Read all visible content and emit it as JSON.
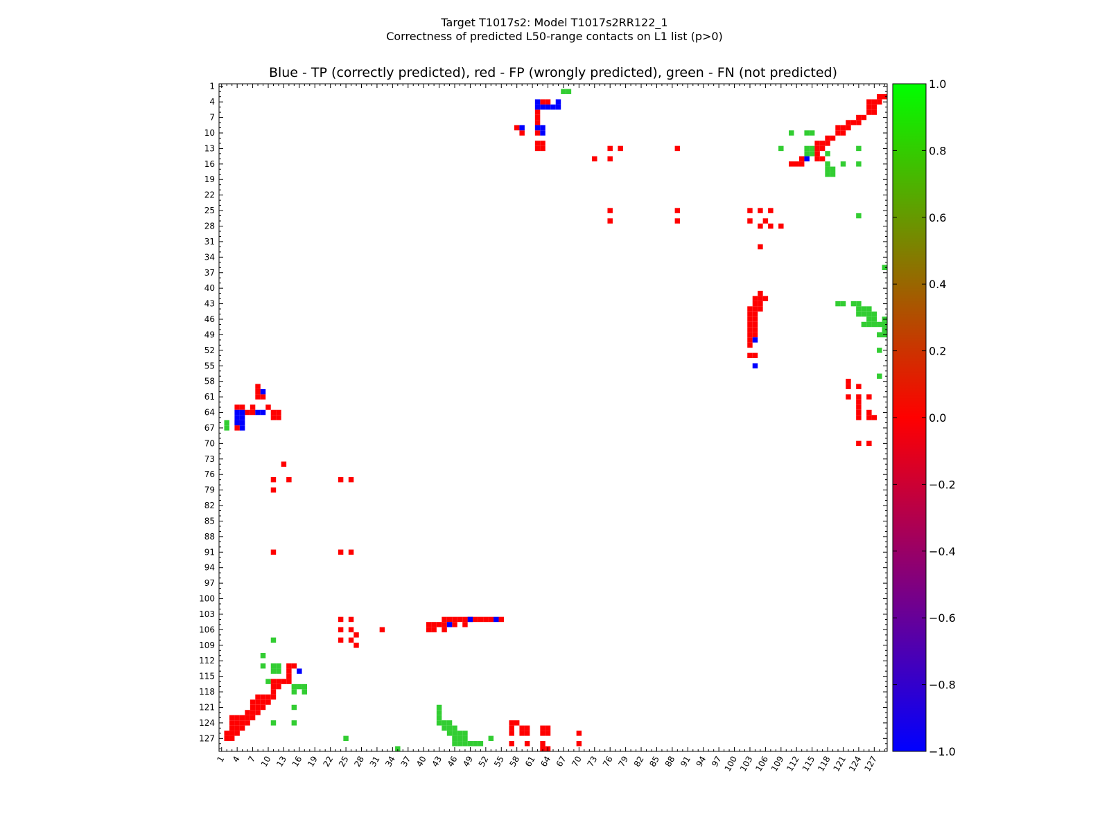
{
  "figure": {
    "title_line1": "Target T1017s2: Model T1017s2RR122_1",
    "title_line2": "Correctness of predicted L50-range contacts on L1 list (p>0)"
  },
  "chart_data": {
    "type": "heatmap",
    "title": "Blue - TP (correctly predicted), red - FP (wrongly predicted), green - FN (not predicted)",
    "xlabel": "",
    "ylabel": "",
    "xlim": [
      1,
      129
    ],
    "ylim": [
      1,
      129
    ],
    "x_ticks": [
      1,
      4,
      7,
      10,
      13,
      16,
      19,
      22,
      25,
      28,
      31,
      34,
      37,
      40,
      43,
      46,
      49,
      52,
      55,
      58,
      61,
      64,
      67,
      70,
      73,
      76,
      79,
      82,
      85,
      88,
      91,
      94,
      97,
      100,
      103,
      106,
      109,
      112,
      115,
      118,
      121,
      124,
      127
    ],
    "y_ticks": [
      1,
      4,
      7,
      10,
      13,
      16,
      19,
      22,
      25,
      28,
      31,
      34,
      37,
      40,
      43,
      46,
      49,
      52,
      55,
      58,
      61,
      64,
      67,
      70,
      73,
      76,
      79,
      82,
      85,
      88,
      91,
      94,
      97,
      100,
      103,
      106,
      109,
      112,
      115,
      118,
      121,
      124,
      127
    ],
    "colorbar": {
      "min": -1.0,
      "max": 1.0,
      "ticks": [
        "1.0",
        "0.8",
        "0.6",
        "0.4",
        "0.2",
        "0.0",
        "−0.2",
        "−0.4",
        "−0.6",
        "−0.8",
        "−1.0"
      ],
      "colormap": [
        "#0000ff",
        "#ff0000",
        "#00ff00"
      ]
    },
    "categories": {
      "TP": {
        "value": -1,
        "color": "#0000ff"
      },
      "FP": {
        "value": 0,
        "color": "#ff0000"
      },
      "FN": {
        "value": 0.8,
        "color": "#32cd32"
      }
    },
    "cells": {
      "TP": [
        [
          4,
          62
        ],
        [
          5,
          62
        ],
        [
          5,
          63
        ],
        [
          5,
          64
        ],
        [
          5,
          65
        ],
        [
          5,
          66
        ],
        [
          9,
          62
        ],
        [
          9,
          63
        ],
        [
          10,
          63
        ],
        [
          4,
          66
        ],
        [
          9,
          59
        ],
        [
          15,
          114
        ],
        [
          50,
          104
        ],
        [
          55,
          104
        ],
        [
          104,
          49
        ],
        [
          104,
          54
        ],
        [
          105,
          45
        ],
        [
          60,
          9
        ],
        [
          64,
          4
        ],
        [
          64,
          5
        ],
        [
          64,
          8
        ],
        [
          64,
          9
        ],
        [
          65,
          4
        ],
        [
          65,
          5
        ],
        [
          66,
          4
        ],
        [
          66,
          5
        ],
        [
          67,
          5
        ],
        [
          114,
          16
        ]
      ],
      "FP": [
        [
          3,
          128
        ],
        [
          3,
          129
        ],
        [
          4,
          126
        ],
        [
          4,
          127
        ],
        [
          4,
          128
        ],
        [
          5,
          126
        ],
        [
          5,
          127
        ],
        [
          6,
          126
        ],
        [
          6,
          127
        ],
        [
          7,
          124
        ],
        [
          7,
          125
        ],
        [
          8,
          122
        ],
        [
          8,
          123
        ],
        [
          8,
          124
        ],
        [
          9,
          120
        ],
        [
          9,
          121
        ],
        [
          9,
          122
        ],
        [
          10,
          120
        ],
        [
          10,
          121
        ],
        [
          11,
          118
        ],
        [
          11,
          119
        ],
        [
          12,
          116
        ],
        [
          12,
          117
        ],
        [
          12,
          118
        ],
        [
          13,
          116
        ],
        [
          13,
          117
        ],
        [
          14,
          116
        ],
        [
          15,
          116
        ],
        [
          15,
          117
        ],
        [
          15,
          113
        ],
        [
          16,
          113
        ],
        [
          16,
          112
        ],
        [
          16,
          111
        ],
        [
          4,
          63
        ],
        [
          4,
          64
        ],
        [
          6,
          62
        ],
        [
          7,
          62
        ],
        [
          8,
          62
        ],
        [
          9,
          58
        ],
        [
          10,
          59
        ],
        [
          10,
          62
        ],
        [
          12,
          62
        ],
        [
          12,
          63
        ],
        [
          13,
          62
        ],
        [
          13,
          63
        ],
        [
          13,
          76
        ],
        [
          13,
          78
        ],
        [
          13,
          89
        ],
        [
          15,
          73
        ],
        [
          15,
          76
        ],
        [
          25,
          76
        ],
        [
          25,
          89
        ],
        [
          27,
          76
        ],
        [
          27,
          89
        ],
        [
          25,
          103
        ],
        [
          25,
          105
        ],
        [
          25,
          107
        ],
        [
          27,
          103
        ],
        [
          27,
          106
        ],
        [
          28,
          105
        ],
        [
          28,
          107
        ],
        [
          28,
          109
        ],
        [
          32,
          105
        ],
        [
          41,
          105
        ],
        [
          42,
          104
        ],
        [
          42,
          105
        ],
        [
          42,
          106
        ],
        [
          43,
          104
        ],
        [
          43,
          105
        ],
        [
          44,
          103
        ],
        [
          44,
          104
        ],
        [
          44,
          105
        ],
        [
          45,
          103
        ],
        [
          45,
          104
        ],
        [
          46,
          103
        ],
        [
          46,
          104
        ],
        [
          47,
          103
        ],
        [
          47,
          104
        ],
        [
          48,
          103
        ],
        [
          48,
          104
        ],
        [
          49,
          103
        ],
        [
          49,
          104
        ],
        [
          50,
          103
        ],
        [
          51,
          103
        ],
        [
          53,
          103
        ],
        [
          53,
          104
        ],
        [
          58,
          122
        ],
        [
          59,
          122
        ],
        [
          59,
          124
        ],
        [
          61,
          122
        ],
        [
          61,
          124
        ],
        [
          61,
          126
        ],
        [
          62,
          124
        ],
        [
          63,
          124
        ],
        [
          64,
          124
        ],
        [
          64,
          126
        ],
        [
          65,
          124
        ],
        [
          65,
          126
        ],
        [
          65,
          127
        ],
        [
          70,
          124
        ],
        [
          70,
          126
        ],
        [
          59,
          8
        ],
        [
          60,
          8
        ],
        [
          61,
          8
        ],
        [
          61,
          9
        ],
        [
          63,
          4
        ],
        [
          63,
          5
        ],
        [
          63,
          7
        ],
        [
          63,
          10
        ],
        [
          64,
          6
        ],
        [
          64,
          7
        ],
        [
          64,
          11
        ],
        [
          64,
          12
        ],
        [
          65,
          11
        ],
        [
          65,
          12
        ],
        [
          66,
          4
        ],
        [
          67,
          4
        ],
        [
          74,
          13
        ],
        [
          77,
          11
        ],
        [
          77,
          14
        ],
        [
          79,
          11
        ],
        [
          91,
          11
        ],
        [
          77,
          24
        ],
        [
          77,
          26
        ],
        [
          91,
          24
        ],
        [
          91,
          26
        ],
        [
          104,
          24
        ],
        [
          104,
          26
        ],
        [
          106,
          24
        ],
        [
          106,
          26
        ],
        [
          106,
          32
        ],
        [
          107,
          27
        ],
        [
          108,
          24
        ],
        [
          108,
          26
        ],
        [
          109,
          27
        ],
        [
          104,
          44
        ],
        [
          104,
          45
        ],
        [
          104,
          46
        ],
        [
          104,
          47
        ],
        [
          104,
          48
        ],
        [
          104,
          49
        ],
        [
          104,
          50
        ],
        [
          104,
          51
        ],
        [
          104,
          52
        ],
        [
          104,
          53
        ],
        [
          104,
          55
        ],
        [
          105,
          41
        ],
        [
          105,
          42
        ],
        [
          105,
          43
        ],
        [
          105,
          44
        ],
        [
          105,
          46
        ],
        [
          105,
          48
        ],
        [
          106,
          41
        ],
        [
          106,
          42
        ],
        [
          106,
          44
        ],
        [
          113,
          14
        ],
        [
          113,
          15
        ],
        [
          114,
          14
        ],
        [
          115,
          14
        ],
        [
          116,
          11
        ],
        [
          116,
          12
        ],
        [
          116,
          13
        ],
        [
          116,
          14
        ],
        [
          117,
          11
        ],
        [
          117,
          12
        ],
        [
          118,
          11
        ],
        [
          119,
          8
        ],
        [
          119,
          9
        ],
        [
          119,
          10
        ],
        [
          119,
          11
        ],
        [
          120,
          7
        ],
        [
          120,
          8
        ],
        [
          120,
          9
        ],
        [
          120,
          10
        ],
        [
          121,
          7
        ],
        [
          121,
          8
        ],
        [
          121,
          9
        ],
        [
          122,
          6
        ],
        [
          122,
          7
        ],
        [
          122,
          8
        ],
        [
          123,
          3
        ],
        [
          123,
          4
        ],
        [
          123,
          5
        ],
        [
          123,
          6
        ],
        [
          123,
          7
        ],
        [
          124,
          3
        ],
        [
          124,
          4
        ],
        [
          124,
          5
        ],
        [
          124,
          6
        ],
        [
          125,
          3
        ],
        [
          125,
          4
        ],
        [
          125,
          5
        ],
        [
          126,
          2
        ],
        [
          126,
          3
        ],
        [
          126,
          4
        ],
        [
          127,
          2
        ],
        [
          127,
          3
        ],
        [
          124,
          57
        ],
        [
          124,
          58
        ],
        [
          125,
          57
        ],
        [
          125,
          59
        ],
        [
          125,
          60
        ],
        [
          125,
          63
        ],
        [
          125,
          64
        ],
        [
          126,
          57
        ],
        [
          126,
          59
        ],
        [
          126,
          60
        ],
        [
          126,
          63
        ],
        [
          126,
          64
        ],
        [
          126,
          70
        ],
        [
          128,
          57
        ],
        [
          128,
          60
        ],
        [
          128,
          63
        ],
        [
          128,
          70
        ],
        [
          129,
          63
        ],
        [
          129,
          64
        ]
      ],
      "FN": [
        [
          2,
          67
        ],
        [
          2,
          68
        ],
        [
          10,
          111
        ],
        [
          10,
          114
        ],
        [
          10,
          115
        ],
        [
          13,
          109
        ],
        [
          13,
          114
        ],
        [
          13,
          115
        ],
        [
          13,
          124
        ],
        [
          14,
          114
        ],
        [
          14,
          115
        ],
        [
          14,
          118
        ],
        [
          16,
          118
        ],
        [
          16,
          121
        ],
        [
          16,
          124
        ],
        [
          17,
          118
        ],
        [
          17,
          119
        ],
        [
          18,
          118
        ],
        [
          18,
          119
        ],
        [
          26,
          124
        ],
        [
          36,
          129
        ],
        [
          43,
          120
        ],
        [
          43,
          121
        ],
        [
          43,
          123
        ],
        [
          43,
          124
        ],
        [
          44,
          124
        ],
        [
          44,
          125
        ],
        [
          44,
          126
        ],
        [
          45,
          124
        ],
        [
          45,
          125
        ],
        [
          45,
          126
        ],
        [
          45,
          127
        ],
        [
          46,
          126
        ],
        [
          46,
          127
        ],
        [
          46,
          129
        ],
        [
          47,
          125
        ],
        [
          47,
          126
        ],
        [
          47,
          127
        ],
        [
          47,
          128
        ],
        [
          47,
          129
        ],
        [
          48,
          129
        ],
        [
          49,
          128
        ],
        [
          49,
          129
        ],
        [
          52,
          128
        ],
        [
          57,
          128
        ],
        [
          66,
          2
        ],
        [
          67,
          2
        ],
        [
          108,
          11
        ],
        [
          111,
          9
        ],
        [
          113,
          9
        ],
        [
          113,
          11
        ],
        [
          113,
          12
        ],
        [
          114,
          11
        ],
        [
          114,
          12
        ],
        [
          116,
          10
        ],
        [
          117,
          15
        ],
        [
          117,
          16
        ],
        [
          117,
          17
        ],
        [
          118,
          15
        ],
        [
          118,
          17
        ],
        [
          121,
          15
        ],
        [
          124,
          11
        ],
        [
          124,
          15
        ],
        [
          127,
          25
        ],
        [
          121,
          43
        ],
        [
          122,
          43
        ],
        [
          123,
          43
        ],
        [
          124,
          43
        ],
        [
          124,
          44
        ],
        [
          124,
          45
        ],
        [
          125,
          44
        ],
        [
          125,
          45
        ],
        [
          125,
          46
        ],
        [
          126,
          45
        ],
        [
          126,
          46
        ],
        [
          126,
          47
        ],
        [
          126,
          48
        ],
        [
          127,
          46
        ],
        [
          127,
          47
        ],
        [
          127,
          48
        ],
        [
          128,
          46
        ],
        [
          128,
          47
        ],
        [
          128,
          48
        ],
        [
          128,
          49
        ],
        [
          128,
          50
        ],
        [
          127,
          53
        ],
        [
          129,
          35
        ],
        [
          128,
          51
        ]
      ]
    }
  }
}
